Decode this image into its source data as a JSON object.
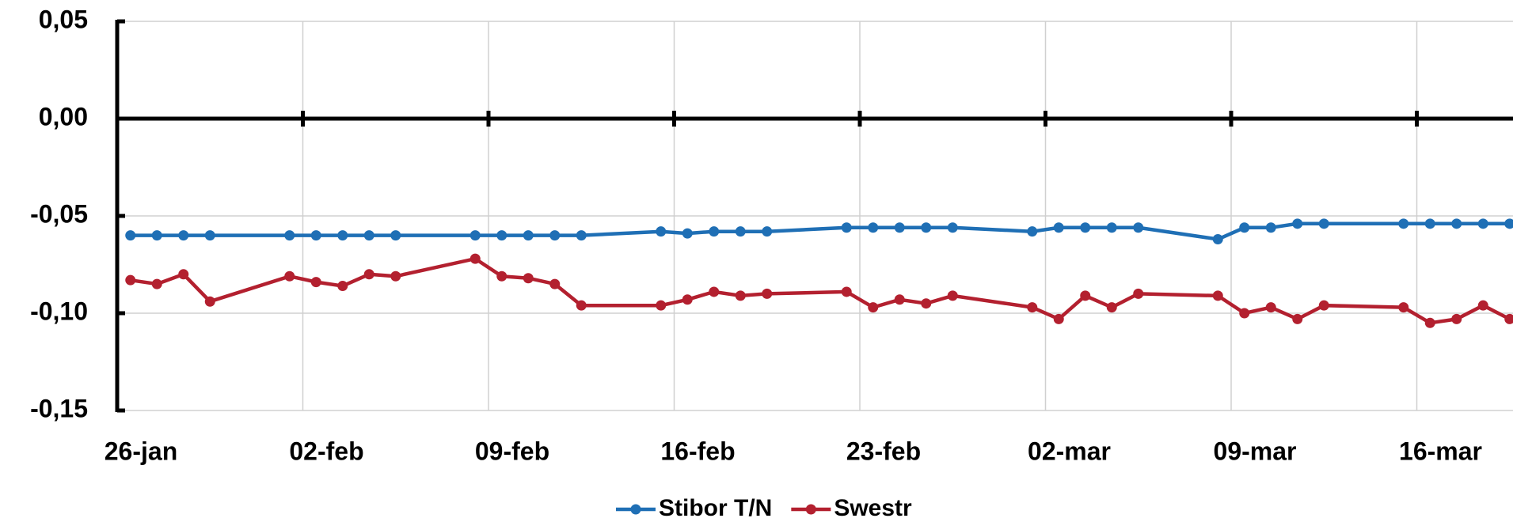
{
  "chart_data": {
    "type": "line",
    "x": [
      "26-jan",
      "27-jan",
      "28-jan",
      "29-jan",
      "01-feb",
      "02-feb",
      "03-feb",
      "04-feb",
      "05-feb",
      "08-feb",
      "09-feb",
      "10-feb",
      "11-feb",
      "12-feb",
      "15-feb",
      "16-feb",
      "17-feb",
      "18-feb",
      "19-feb",
      "22-feb",
      "23-feb",
      "24-feb",
      "25-feb",
      "26-feb",
      "01-mar",
      "02-mar",
      "03-mar",
      "04-mar",
      "05-mar",
      "08-mar",
      "09-mar",
      "10-mar",
      "11-mar",
      "12-mar",
      "15-mar",
      "16-mar",
      "17-mar",
      "18-mar",
      "19-mar"
    ],
    "series": [
      {
        "name": "Stibor T/N",
        "color": "#1f6fb5",
        "values": [
          -0.06,
          -0.06,
          -0.06,
          -0.06,
          -0.06,
          -0.06,
          -0.06,
          -0.06,
          -0.06,
          -0.06,
          -0.06,
          -0.06,
          -0.06,
          -0.06,
          -0.058,
          -0.059,
          -0.058,
          -0.058,
          -0.058,
          -0.056,
          -0.056,
          -0.056,
          -0.056,
          -0.056,
          -0.058,
          -0.056,
          -0.056,
          -0.056,
          -0.056,
          -0.062,
          -0.056,
          -0.056,
          -0.054,
          -0.054,
          -0.054,
          -0.054,
          -0.054,
          -0.054,
          -0.054
        ]
      },
      {
        "name": "Swestr",
        "color": "#b3202f",
        "values": [
          -0.083,
          -0.085,
          -0.08,
          -0.094,
          -0.081,
          -0.084,
          -0.086,
          -0.08,
          -0.081,
          -0.072,
          -0.081,
          -0.082,
          -0.085,
          -0.096,
          -0.096,
          -0.093,
          -0.089,
          -0.091,
          -0.09,
          -0.089,
          -0.097,
          -0.093,
          -0.095,
          -0.091,
          -0.097,
          -0.103,
          -0.091,
          -0.097,
          -0.09,
          -0.091,
          -0.1,
          -0.097,
          -0.103,
          -0.096,
          -0.097,
          -0.105,
          -0.103,
          -0.096,
          -0.103
        ]
      }
    ],
    "xlim": [
      "26-jan",
      "20-mar"
    ],
    "xticks": [
      "26-jan",
      "02-feb",
      "09-feb",
      "16-feb",
      "23-feb",
      "02-mar",
      "09-mar",
      "16-mar"
    ],
    "ylim": [
      -0.15,
      0.05
    ],
    "yticks": [
      {
        "value": 0.05,
        "label": "0,05"
      },
      {
        "value": 0,
        "label": "0,00"
      },
      {
        "value": -0.05,
        "label": "-0,05"
      },
      {
        "value": -0.1,
        "label": "-0,10"
      },
      {
        "value": -0.15,
        "label": "-0,15"
      }
    ],
    "grid": true,
    "legend": "bottom"
  }
}
